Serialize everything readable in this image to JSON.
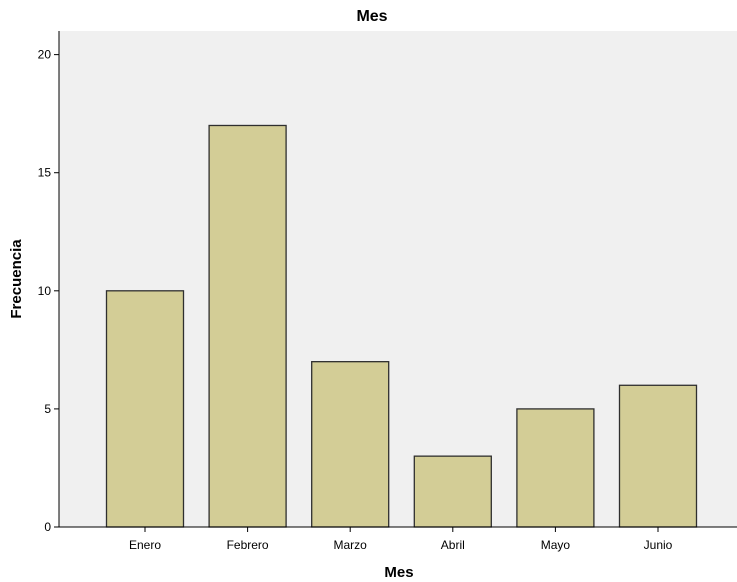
{
  "chart_data": {
    "type": "bar",
    "title": "Mes",
    "xlabel": "Mes",
    "ylabel": "Frecuencia",
    "categories": [
      "Enero",
      "Febrero",
      "Marzo",
      "Abril",
      "Mayo",
      "Junio"
    ],
    "values": [
      10,
      17,
      7,
      3,
      5,
      6
    ],
    "ylim": [
      0,
      21
    ],
    "yticks": [
      "0",
      "5",
      "10",
      "15",
      "20"
    ],
    "grid": false,
    "legend": "none"
  },
  "colors": {
    "bar_fill": "#d3cd96",
    "bar_stroke": "#2f2f2f",
    "plot_background": "#f0f0f0",
    "axis": "#000000"
  }
}
